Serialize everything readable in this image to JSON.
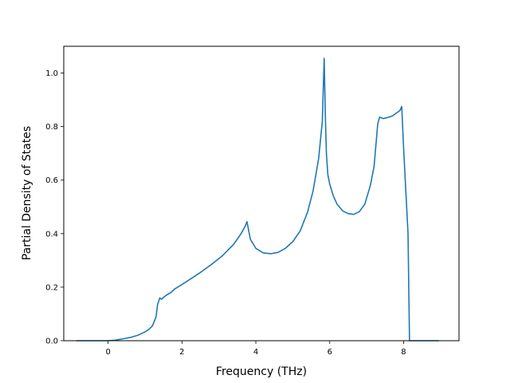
{
  "chart_data": {
    "type": "line",
    "title": "",
    "xlabel": "Frequency (THz)",
    "ylabel": "Partial Density of States",
    "xlim": [
      -1.2,
      9.5
    ],
    "ylim": [
      0.0,
      1.1
    ],
    "x_ticks": [
      0,
      2,
      4,
      6,
      8
    ],
    "x_tick_labels": [
      "0",
      "2",
      "4",
      "6",
      "8"
    ],
    "y_ticks": [
      0.0,
      0.2,
      0.4,
      0.6,
      0.8,
      1.0
    ],
    "y_tick_labels": [
      "0.0",
      "0.2",
      "0.4",
      "0.6",
      "0.8",
      "1.0"
    ],
    "grid": false,
    "line_color": "#1f77b4",
    "series": [
      {
        "x": [
          -0.85,
          0.0,
          0.2,
          0.4,
          0.6,
          0.8,
          1.0,
          1.1,
          1.2,
          1.3,
          1.34,
          1.4,
          1.45,
          1.5,
          1.6,
          1.7,
          1.8,
          2.0,
          2.2,
          2.5,
          2.8,
          3.1,
          3.4,
          3.6,
          3.72,
          3.76,
          3.85,
          4.0,
          4.2,
          4.4,
          4.6,
          4.8,
          5.0,
          5.2,
          5.4,
          5.55,
          5.7,
          5.8,
          5.85,
          5.88,
          5.91,
          5.95,
          6.0,
          6.1,
          6.2,
          6.35,
          6.5,
          6.65,
          6.8,
          6.95,
          7.1,
          7.2,
          7.3,
          7.35,
          7.45,
          7.6,
          7.7,
          7.8,
          7.9,
          7.95,
          8.0,
          8.12,
          8.16,
          8.5,
          8.95
        ],
        "y": [
          0.0,
          0.0,
          0.002,
          0.007,
          0.012,
          0.02,
          0.033,
          0.042,
          0.055,
          0.09,
          0.135,
          0.16,
          0.155,
          0.162,
          0.172,
          0.18,
          0.193,
          0.21,
          0.228,
          0.255,
          0.285,
          0.318,
          0.36,
          0.4,
          0.43,
          0.445,
          0.38,
          0.345,
          0.328,
          0.325,
          0.33,
          0.345,
          0.37,
          0.41,
          0.48,
          0.56,
          0.68,
          0.82,
          1.055,
          0.85,
          0.7,
          0.62,
          0.585,
          0.54,
          0.51,
          0.485,
          0.475,
          0.472,
          0.482,
          0.51,
          0.58,
          0.65,
          0.81,
          0.835,
          0.83,
          0.835,
          0.84,
          0.85,
          0.86,
          0.875,
          0.72,
          0.4,
          0.0,
          0.0,
          0.0
        ]
      }
    ]
  }
}
